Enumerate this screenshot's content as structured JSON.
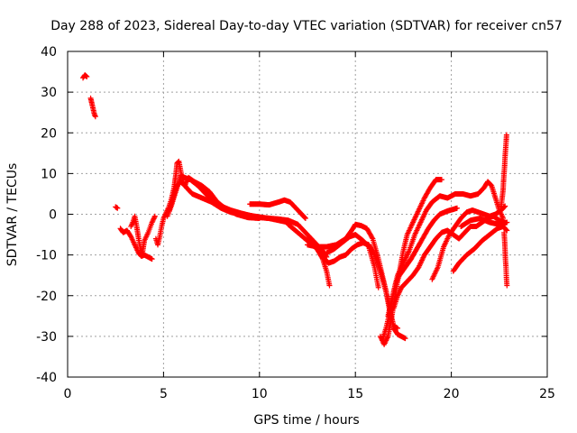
{
  "chart_data": {
    "type": "scatter",
    "title": "Day 288 of 2023, Sidereal Day-to-day VTEC variation (SDTVAR) for receiver cn57",
    "xlabel": "GPS time / hours",
    "ylabel": "SDTVAR / TECUs",
    "xlim": [
      0,
      25
    ],
    "ylim": [
      -40,
      40
    ],
    "xticks": [
      "0",
      "5",
      "10",
      "15",
      "20",
      "25"
    ],
    "yticks": [
      "-40",
      "-30",
      "-20",
      "-10",
      "0",
      "10",
      "20",
      "30",
      "40"
    ],
    "grid": true,
    "marker": "+",
    "color": "#ff0000",
    "series": [
      {
        "name": "s1",
        "points": [
          [
            0.8,
            33.5
          ],
          [
            0.9,
            34.2
          ],
          [
            1.0,
            33.8
          ]
        ]
      },
      {
        "name": "s2",
        "points": [
          [
            1.2,
            28.5
          ],
          [
            1.25,
            27.5
          ],
          [
            1.3,
            26.5
          ],
          [
            1.35,
            25.5
          ],
          [
            1.4,
            24.5
          ],
          [
            1.45,
            24.0
          ]
        ]
      },
      {
        "name": "s3",
        "points": [
          [
            2.5,
            1.8
          ],
          [
            2.6,
            1.5
          ]
        ]
      },
      {
        "name": "s4",
        "points": [
          [
            2.75,
            -3.5
          ],
          [
            2.9,
            -4.5
          ],
          [
            3.1,
            -4.0
          ],
          [
            3.3,
            -5.5
          ],
          [
            3.5,
            -7.5
          ],
          [
            3.7,
            -9.5
          ],
          [
            3.85,
            -10.3
          ],
          [
            4.0,
            -10.0
          ],
          [
            4.2,
            -10.5
          ],
          [
            4.4,
            -11.0
          ]
        ]
      },
      {
        "name": "s5",
        "points": [
          [
            3.3,
            -3.0
          ],
          [
            3.4,
            -2.0
          ],
          [
            3.5,
            -0.5
          ],
          [
            3.6,
            -3.0
          ],
          [
            3.7,
            -6.0
          ],
          [
            3.8,
            -8.5
          ],
          [
            3.9,
            -10.0
          ]
        ]
      },
      {
        "name": "s6",
        "points": [
          [
            3.9,
            -9.5
          ],
          [
            4.0,
            -6.5
          ],
          [
            4.2,
            -4.5
          ],
          [
            4.4,
            -2.0
          ],
          [
            4.55,
            -0.5
          ]
        ]
      },
      {
        "name": "s7",
        "points": [
          [
            4.6,
            -6.0
          ],
          [
            4.7,
            -7.5
          ],
          [
            4.8,
            -5.5
          ],
          [
            4.9,
            -3.0
          ],
          [
            5.0,
            -1.0
          ],
          [
            5.1,
            0.0
          ],
          [
            5.25,
            1.5
          ],
          [
            5.4,
            3.5
          ],
          [
            5.55,
            6.5
          ],
          [
            5.65,
            10.0
          ],
          [
            5.7,
            12.5
          ],
          [
            5.8,
            13.0
          ],
          [
            5.9,
            10.5
          ],
          [
            6.0,
            8.0
          ],
          [
            6.2,
            6.5
          ],
          [
            6.5,
            5.0
          ],
          [
            7.0,
            4.0
          ],
          [
            7.5,
            3.0
          ],
          [
            8.0,
            1.5
          ],
          [
            8.5,
            0.5
          ],
          [
            9.0,
            0.0
          ],
          [
            9.5,
            -0.3
          ],
          [
            10.0,
            -0.8
          ],
          [
            10.5,
            -1.0
          ],
          [
            11.0,
            -1.2
          ],
          [
            11.5,
            -1.5
          ],
          [
            12.0,
            -2.5
          ],
          [
            12.5,
            -5.0
          ],
          [
            13.0,
            -7.5
          ],
          [
            13.3,
            -9.0
          ],
          [
            13.5,
            -10.5
          ]
        ]
      },
      {
        "name": "s8",
        "points": [
          [
            5.2,
            -0.5
          ],
          [
            5.4,
            2.0
          ],
          [
            5.6,
            5.0
          ],
          [
            5.8,
            8.0
          ],
          [
            5.9,
            9.5
          ],
          [
            6.1,
            9.0
          ],
          [
            6.4,
            8.5
          ],
          [
            6.8,
            7.0
          ],
          [
            7.2,
            5.0
          ],
          [
            7.6,
            3.5
          ],
          [
            8.0,
            2.0
          ],
          [
            8.5,
            1.0
          ],
          [
            9.0,
            0.3
          ],
          [
            9.5,
            -0.3
          ],
          [
            10.0,
            -0.7
          ],
          [
            10.5,
            -1.0
          ],
          [
            11.0,
            -1.5
          ],
          [
            11.5,
            -2.0
          ]
        ]
      },
      {
        "name": "s9",
        "points": [
          [
            5.3,
            1.0
          ],
          [
            5.5,
            4.0
          ],
          [
            5.7,
            7.0
          ],
          [
            5.9,
            8.0
          ],
          [
            6.1,
            7.0
          ],
          [
            6.3,
            9.0
          ],
          [
            6.6,
            8.0
          ],
          [
            7.0,
            7.0
          ],
          [
            7.4,
            5.5
          ],
          [
            7.8,
            3.0
          ],
          [
            8.2,
            1.5
          ],
          [
            8.8,
            0.0
          ],
          [
            9.4,
            -0.8
          ],
          [
            10.0,
            -1.0
          ]
        ]
      },
      {
        "name": "s10",
        "points": [
          [
            9.5,
            2.5
          ],
          [
            10.0,
            2.5
          ],
          [
            10.5,
            2.3
          ],
          [
            11.0,
            3.0
          ],
          [
            11.3,
            3.5
          ],
          [
            11.6,
            3.0
          ],
          [
            11.9,
            1.5
          ],
          [
            12.2,
            0.0
          ],
          [
            12.4,
            -1.0
          ]
        ]
      },
      {
        "name": "s11",
        "points": [
          [
            11.5,
            -2.5
          ],
          [
            12.0,
            -4.5
          ],
          [
            12.5,
            -6.5
          ],
          [
            13.0,
            -8.5
          ],
          [
            13.3,
            -11.0
          ],
          [
            13.5,
            -14.0
          ],
          [
            13.65,
            -17.5
          ]
        ]
      },
      {
        "name": "s12",
        "points": [
          [
            12.5,
            -7.5
          ],
          [
            13.0,
            -8.0
          ],
          [
            13.5,
            -8.0
          ],
          [
            14.0,
            -7.5
          ],
          [
            14.5,
            -6.0
          ],
          [
            14.8,
            -4.0
          ],
          [
            15.0,
            -2.5
          ],
          [
            15.3,
            -2.8
          ],
          [
            15.6,
            -3.5
          ],
          [
            15.9,
            -6.0
          ],
          [
            16.2,
            -11.0
          ],
          [
            16.5,
            -17.0
          ],
          [
            16.8,
            -23.0
          ],
          [
            17.0,
            -28.0
          ],
          [
            17.2,
            -29.5
          ],
          [
            17.4,
            -30.0
          ],
          [
            17.6,
            -30.5
          ]
        ]
      },
      {
        "name": "s13",
        "points": [
          [
            12.5,
            -6.0
          ],
          [
            13.0,
            -8.5
          ],
          [
            13.3,
            -10.5
          ],
          [
            13.6,
            -12.0
          ],
          [
            13.9,
            -11.5
          ],
          [
            14.2,
            -10.5
          ],
          [
            14.5,
            -10.0
          ],
          [
            14.8,
            -8.5
          ],
          [
            15.1,
            -7.5
          ],
          [
            15.4,
            -7.0
          ],
          [
            15.7,
            -7.5
          ],
          [
            16.0,
            -10.0
          ],
          [
            16.3,
            -14.0
          ],
          [
            16.6,
            -19.0
          ],
          [
            16.8,
            -24.0
          ],
          [
            17.0,
            -27.5
          ],
          [
            17.2,
            -28.0
          ]
        ]
      },
      {
        "name": "s14",
        "points": [
          [
            13.5,
            -9.5
          ],
          [
            13.9,
            -8.5
          ],
          [
            14.3,
            -7.0
          ],
          [
            14.7,
            -5.5
          ],
          [
            15.0,
            -5.0
          ],
          [
            15.4,
            -6.5
          ],
          [
            15.7,
            -8.0
          ],
          [
            16.0,
            -13.0
          ],
          [
            16.2,
            -18.0
          ]
        ]
      },
      {
        "name": "s15",
        "points": [
          [
            16.3,
            -30.0
          ],
          [
            16.5,
            -32.0
          ],
          [
            16.7,
            -30.0
          ],
          [
            16.9,
            -25.0
          ],
          [
            17.1,
            -19.0
          ],
          [
            17.3,
            -14.0
          ],
          [
            17.5,
            -9.0
          ],
          [
            17.7,
            -5.0
          ],
          [
            18.0,
            -2.0
          ],
          [
            18.3,
            1.0
          ],
          [
            18.6,
            4.0
          ],
          [
            18.9,
            6.5
          ],
          [
            19.2,
            8.5
          ],
          [
            19.5,
            8.5
          ]
        ]
      },
      {
        "name": "s16",
        "points": [
          [
            16.4,
            -31.0
          ],
          [
            16.6,
            -28.0
          ],
          [
            16.8,
            -24.0
          ],
          [
            17.0,
            -19.0
          ],
          [
            17.2,
            -15.0
          ],
          [
            17.5,
            -12.0
          ],
          [
            17.8,
            -9.0
          ],
          [
            18.1,
            -5.0
          ],
          [
            18.4,
            -2.0
          ],
          [
            18.7,
            1.0
          ],
          [
            19.0,
            3.0
          ],
          [
            19.4,
            4.5
          ],
          [
            19.8,
            4.0
          ],
          [
            20.2,
            5.0
          ],
          [
            20.6,
            5.0
          ],
          [
            21.0,
            4.5
          ],
          [
            21.4,
            5.0
          ],
          [
            21.7,
            6.5
          ],
          [
            21.9,
            8.0
          ],
          [
            22.1,
            7.0
          ],
          [
            22.3,
            4.0
          ],
          [
            22.5,
            1.0
          ],
          [
            22.7,
            -1.0
          ]
        ]
      },
      {
        "name": "s17",
        "points": [
          [
            16.7,
            -25.0
          ],
          [
            16.9,
            -21.0
          ],
          [
            17.1,
            -17.0
          ],
          [
            17.3,
            -15.0
          ],
          [
            17.6,
            -13.0
          ],
          [
            17.9,
            -11.0
          ],
          [
            18.2,
            -8.5
          ],
          [
            18.5,
            -6.0
          ],
          [
            18.8,
            -3.5
          ],
          [
            19.1,
            -1.5
          ],
          [
            19.4,
            0.0
          ],
          [
            19.8,
            0.8
          ],
          [
            20.1,
            1.2
          ],
          [
            20.3,
            1.5
          ]
        ]
      },
      {
        "name": "s18",
        "points": [
          [
            17.0,
            -23.0
          ],
          [
            17.2,
            -20.0
          ],
          [
            17.4,
            -18.0
          ],
          [
            17.7,
            -16.5
          ],
          [
            18.0,
            -15.0
          ],
          [
            18.3,
            -13.0
          ],
          [
            18.6,
            -10.0
          ],
          [
            18.9,
            -8.0
          ],
          [
            19.2,
            -6.0
          ],
          [
            19.5,
            -4.5
          ],
          [
            19.8,
            -4.0
          ],
          [
            20.1,
            -5.0
          ],
          [
            20.4,
            -6.0
          ],
          [
            20.7,
            -4.5
          ],
          [
            21.0,
            -3.0
          ],
          [
            21.3,
            -3.0
          ],
          [
            21.6,
            -2.0
          ],
          [
            21.9,
            -1.0
          ],
          [
            22.2,
            -0.5
          ],
          [
            22.5,
            -1.5
          ],
          [
            22.8,
            -2.0
          ]
        ]
      },
      {
        "name": "s19",
        "points": [
          [
            19.0,
            -16.0
          ],
          [
            19.3,
            -13.0
          ],
          [
            19.6,
            -8.0
          ],
          [
            19.9,
            -5.0
          ],
          [
            20.2,
            -3.0
          ],
          [
            20.5,
            -1.0
          ],
          [
            20.8,
            0.5
          ],
          [
            21.1,
            1.0
          ],
          [
            21.4,
            0.5
          ],
          [
            21.7,
            0.0
          ],
          [
            22.0,
            -0.5
          ],
          [
            22.3,
            0.0
          ],
          [
            22.6,
            1.0
          ],
          [
            22.8,
            2.0
          ]
        ]
      },
      {
        "name": "s20",
        "points": [
          [
            20.1,
            -14.0
          ],
          [
            20.4,
            -12.0
          ],
          [
            20.8,
            -10.0
          ],
          [
            21.2,
            -8.5
          ],
          [
            21.6,
            -6.5
          ],
          [
            22.0,
            -5.0
          ],
          [
            22.4,
            -3.5
          ],
          [
            22.7,
            -3.0
          ],
          [
            22.9,
            -4.0
          ]
        ]
      },
      {
        "name": "s21",
        "points": [
          [
            20.5,
            -3.0
          ],
          [
            21.0,
            -1.5
          ],
          [
            21.5,
            -1.0
          ],
          [
            22.0,
            -2.0
          ],
          [
            22.5,
            -2.5
          ],
          [
            22.9,
            -2.0
          ]
        ]
      },
      {
        "name": "s22",
        "points": [
          [
            22.6,
            2.0
          ],
          [
            22.65,
            4.0
          ],
          [
            22.7,
            6.0
          ],
          [
            22.72,
            8.0
          ],
          [
            22.75,
            10.0
          ],
          [
            22.78,
            12.0
          ],
          [
            22.8,
            14.0
          ],
          [
            22.83,
            16.0
          ],
          [
            22.86,
            18.0
          ],
          [
            22.88,
            19.5
          ]
        ]
      },
      {
        "name": "s23",
        "points": [
          [
            22.75,
            -4.5
          ],
          [
            22.78,
            -6.5
          ],
          [
            22.8,
            -8.5
          ],
          [
            22.82,
            -11.0
          ],
          [
            22.85,
            -13.0
          ],
          [
            22.87,
            -15.5
          ],
          [
            22.9,
            -17.5
          ]
        ]
      }
    ]
  }
}
